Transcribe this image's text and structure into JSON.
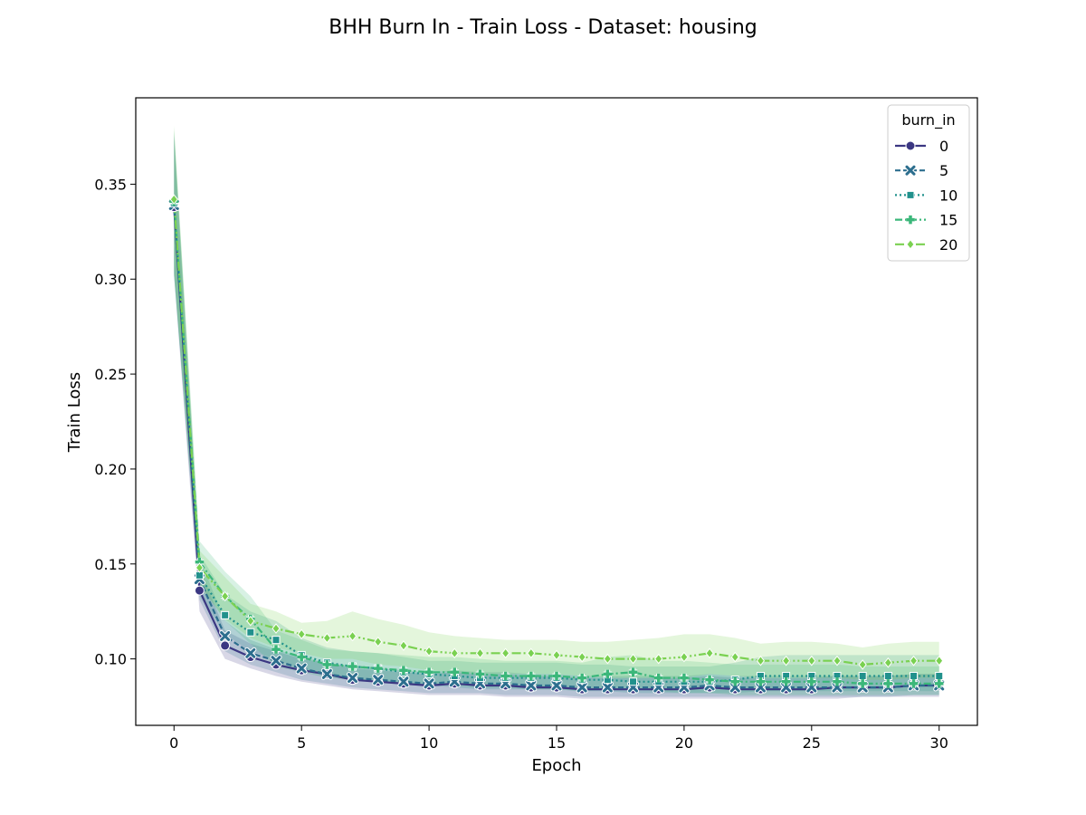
{
  "chart_data": {
    "type": "line",
    "title": "BHH Burn In - Train Loss - Dataset: housing",
    "xlabel": "Epoch",
    "ylabel": "Train Loss",
    "xlim": [
      -1.5,
      31.5
    ],
    "ylim": [
      0.065,
      0.3955
    ],
    "xticks": [
      0,
      5,
      10,
      15,
      20,
      25,
      30
    ],
    "yticks": [
      0.1,
      0.15,
      0.2,
      0.25,
      0.3,
      0.35
    ],
    "grid": false,
    "legend": {
      "title": "burn_in",
      "placement": "top-right"
    },
    "x": [
      0,
      1,
      2,
      3,
      4,
      5,
      6,
      7,
      8,
      9,
      10,
      11,
      12,
      13,
      14,
      15,
      16,
      17,
      18,
      19,
      20,
      21,
      22,
      23,
      24,
      25,
      26,
      27,
      28,
      29,
      30
    ],
    "series": [
      {
        "name": "0",
        "color": "#3b3782",
        "dash": "solid",
        "marker": "circle",
        "values": [
          0.338,
          0.136,
          0.107,
          0.101,
          0.097,
          0.094,
          0.092,
          0.089,
          0.088,
          0.087,
          0.086,
          0.087,
          0.086,
          0.086,
          0.085,
          0.085,
          0.084,
          0.084,
          0.084,
          0.084,
          0.084,
          0.085,
          0.084,
          0.084,
          0.084,
          0.084,
          0.085,
          0.085,
          0.085,
          0.086,
          0.086
        ],
        "lower": [
          0.302,
          0.125,
          0.1,
          0.095,
          0.091,
          0.088,
          0.086,
          0.084,
          0.083,
          0.082,
          0.081,
          0.081,
          0.081,
          0.08,
          0.08,
          0.08,
          0.079,
          0.079,
          0.079,
          0.079,
          0.079,
          0.079,
          0.079,
          0.079,
          0.079,
          0.079,
          0.079,
          0.08,
          0.08,
          0.08,
          0.08
        ],
        "upper": [
          0.375,
          0.148,
          0.115,
          0.108,
          0.104,
          0.1,
          0.098,
          0.095,
          0.094,
          0.093,
          0.092,
          0.093,
          0.092,
          0.092,
          0.091,
          0.091,
          0.09,
          0.09,
          0.09,
          0.09,
          0.09,
          0.091,
          0.09,
          0.09,
          0.09,
          0.09,
          0.091,
          0.091,
          0.091,
          0.092,
          0.092
        ]
      },
      {
        "name": "5",
        "color": "#2c6e8e",
        "dash": "6,3",
        "marker": "x",
        "values": [
          0.339,
          0.142,
          0.112,
          0.103,
          0.099,
          0.095,
          0.092,
          0.09,
          0.089,
          0.088,
          0.087,
          0.088,
          0.087,
          0.087,
          0.086,
          0.086,
          0.085,
          0.085,
          0.085,
          0.085,
          0.085,
          0.086,
          0.085,
          0.085,
          0.085,
          0.085,
          0.085,
          0.085,
          0.085,
          0.086,
          0.086
        ],
        "lower": [
          0.303,
          0.131,
          0.104,
          0.097,
          0.093,
          0.089,
          0.087,
          0.085,
          0.084,
          0.083,
          0.082,
          0.082,
          0.082,
          0.081,
          0.081,
          0.081,
          0.08,
          0.08,
          0.08,
          0.08,
          0.08,
          0.08,
          0.08,
          0.08,
          0.08,
          0.08,
          0.08,
          0.08,
          0.08,
          0.081,
          0.081
        ],
        "upper": [
          0.376,
          0.153,
          0.12,
          0.11,
          0.105,
          0.101,
          0.098,
          0.096,
          0.095,
          0.094,
          0.093,
          0.094,
          0.093,
          0.093,
          0.092,
          0.092,
          0.091,
          0.091,
          0.091,
          0.091,
          0.091,
          0.092,
          0.091,
          0.091,
          0.091,
          0.091,
          0.091,
          0.091,
          0.091,
          0.092,
          0.092
        ]
      },
      {
        "name": "10",
        "color": "#21918c",
        "dash": "2,3",
        "marker": "square",
        "values": [
          0.34,
          0.144,
          0.123,
          0.114,
          0.11,
          0.102,
          0.098,
          0.096,
          0.095,
          0.093,
          0.092,
          0.091,
          0.09,
          0.09,
          0.09,
          0.09,
          0.089,
          0.089,
          0.088,
          0.088,
          0.088,
          0.088,
          0.089,
          0.091,
          0.091,
          0.091,
          0.091,
          0.091,
          0.091,
          0.091,
          0.091
        ],
        "lower": [
          0.302,
          0.133,
          0.113,
          0.104,
          0.1,
          0.094,
          0.091,
          0.089,
          0.088,
          0.087,
          0.086,
          0.085,
          0.084,
          0.084,
          0.084,
          0.084,
          0.083,
          0.083,
          0.082,
          0.082,
          0.082,
          0.082,
          0.082,
          0.083,
          0.083,
          0.083,
          0.083,
          0.083,
          0.083,
          0.083,
          0.083
        ],
        "upper": [
          0.378,
          0.155,
          0.134,
          0.125,
          0.12,
          0.111,
          0.106,
          0.104,
          0.103,
          0.101,
          0.099,
          0.099,
          0.098,
          0.098,
          0.098,
          0.098,
          0.097,
          0.097,
          0.096,
          0.096,
          0.096,
          0.096,
          0.098,
          0.101,
          0.102,
          0.102,
          0.102,
          0.102,
          0.102,
          0.102,
          0.102
        ]
      },
      {
        "name": "15",
        "color": "#3bb77a",
        "dash": "8,3,2,3",
        "marker": "plus",
        "values": [
          0.341,
          0.151,
          0.133,
          0.121,
          0.105,
          0.101,
          0.097,
          0.096,
          0.095,
          0.094,
          0.093,
          0.093,
          0.092,
          0.091,
          0.091,
          0.091,
          0.09,
          0.092,
          0.093,
          0.09,
          0.09,
          0.089,
          0.088,
          0.088,
          0.088,
          0.088,
          0.088,
          0.087,
          0.087,
          0.087,
          0.087
        ],
        "lower": [
          0.302,
          0.14,
          0.12,
          0.108,
          0.096,
          0.093,
          0.09,
          0.089,
          0.088,
          0.087,
          0.086,
          0.086,
          0.085,
          0.085,
          0.084,
          0.084,
          0.083,
          0.084,
          0.084,
          0.083,
          0.082,
          0.082,
          0.081,
          0.081,
          0.081,
          0.081,
          0.081,
          0.081,
          0.081,
          0.081,
          0.081
        ],
        "upper": [
          0.38,
          0.162,
          0.146,
          0.133,
          0.115,
          0.11,
          0.105,
          0.104,
          0.103,
          0.102,
          0.101,
          0.101,
          0.1,
          0.099,
          0.099,
          0.099,
          0.098,
          0.101,
          0.102,
          0.099,
          0.099,
          0.098,
          0.097,
          0.097,
          0.097,
          0.097,
          0.097,
          0.096,
          0.096,
          0.096,
          0.096
        ]
      },
      {
        "name": "20",
        "color": "#7ad151",
        "dash": "10,3,2,3,2,3",
        "marker": "diamond",
        "values": [
          0.342,
          0.148,
          0.133,
          0.12,
          0.116,
          0.113,
          0.111,
          0.112,
          0.109,
          0.107,
          0.104,
          0.103,
          0.103,
          0.103,
          0.103,
          0.102,
          0.101,
          0.1,
          0.1,
          0.1,
          0.101,
          0.103,
          0.101,
          0.099,
          0.099,
          0.099,
          0.099,
          0.097,
          0.098,
          0.099,
          0.099
        ],
        "lower": [
          0.304,
          0.138,
          0.121,
          0.111,
          0.106,
          0.103,
          0.1,
          0.1,
          0.097,
          0.096,
          0.094,
          0.093,
          0.092,
          0.092,
          0.092,
          0.092,
          0.091,
          0.09,
          0.09,
          0.09,
          0.09,
          0.092,
          0.091,
          0.09,
          0.09,
          0.09,
          0.09,
          0.089,
          0.089,
          0.09,
          0.09
        ],
        "upper": [
          0.381,
          0.157,
          0.143,
          0.129,
          0.125,
          0.119,
          0.12,
          0.125,
          0.121,
          0.118,
          0.114,
          0.112,
          0.111,
          0.11,
          0.11,
          0.11,
          0.109,
          0.109,
          0.11,
          0.111,
          0.113,
          0.113,
          0.111,
          0.108,
          0.109,
          0.109,
          0.108,
          0.106,
          0.108,
          0.109,
          0.109
        ]
      }
    ]
  }
}
